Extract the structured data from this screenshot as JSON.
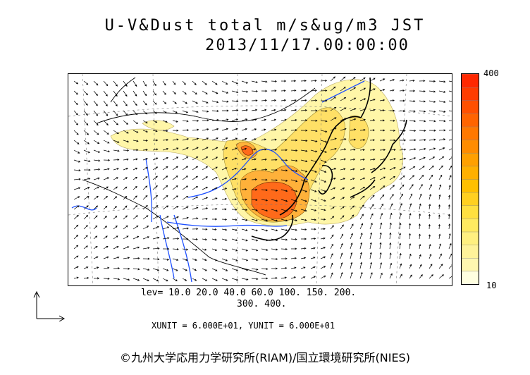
{
  "header": {
    "title_line1": "U-V&Dust total m/s&ug/m3 JST",
    "title_line2": "2013/11/17.00:00:00"
  },
  "colorbar": {
    "max_label": "400",
    "min_label": "10",
    "colors": [
      "#ffffe0",
      "#fff7b0",
      "#fff39a",
      "#fff080",
      "#ffea60",
      "#ffe040",
      "#ffd020",
      "#ffc000",
      "#ffb000",
      "#ffa000",
      "#ff8c00",
      "#ff7800",
      "#ff6400",
      "#ff5000",
      "#ff3c00",
      "#ff2800"
    ]
  },
  "levels": {
    "line1": "lev= 10.0 20.0 40.0 60.0 100. 150. 200.",
    "line2": "300. 400."
  },
  "units_text": "XUNIT = 6.000E+01, YUNIT = 6.000E+01",
  "copyright": "©九州大学応用力学研究所(RIAM)/国立環境研究所(NIES)",
  "map_colors": {
    "coast": "#000000",
    "river": "#1e50ff",
    "low": "#fff6a8",
    "mid": "#ffe066",
    "high": "#ffb13a",
    "peak": "#ff6a1a"
  }
}
